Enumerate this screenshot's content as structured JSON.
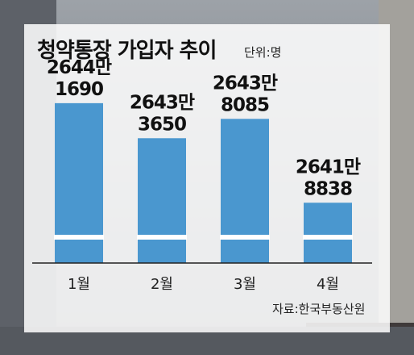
{
  "title": "청약통장 가입자 추이",
  "unit": "단위:명",
  "source": "자료:한국부동산원",
  "colors": {
    "bar": "#4a97cf",
    "gap": "#ffffff",
    "axis": "#222222"
  },
  "chart_data": {
    "type": "bar",
    "title": "청약통장 가입자 추이",
    "categories": [
      "1월",
      "2월",
      "3월",
      "4월"
    ],
    "values": [
      26441690,
      26433650,
      26438085,
      26418838
    ],
    "value_labels": [
      [
        "2644만",
        "1690"
      ],
      [
        "2643만",
        "3650"
      ],
      [
        "2643만",
        "8085"
      ],
      [
        "2641만",
        "8838"
      ]
    ],
    "xlabel": "",
    "ylabel": "",
    "axis_break": true,
    "ylim": [
      26405000,
      26445000
    ],
    "grid": false,
    "legend": "none"
  }
}
